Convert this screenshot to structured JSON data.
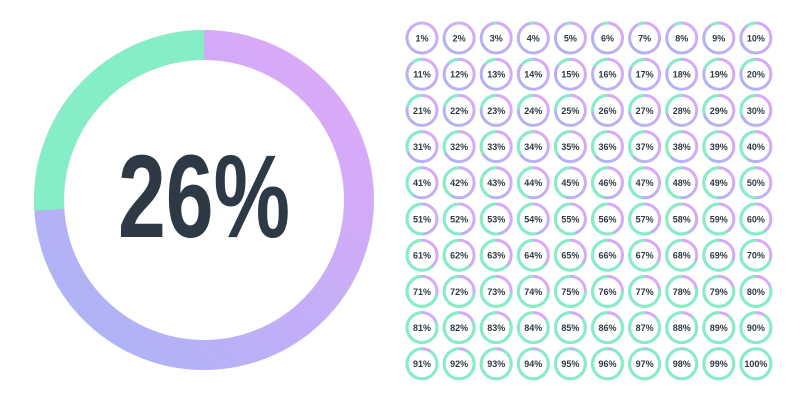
{
  "main": {
    "value": 26,
    "label": "26%"
  },
  "rings": [
    {
      "value": 1,
      "label": "1%"
    },
    {
      "value": 2,
      "label": "2%"
    },
    {
      "value": 3,
      "label": "3%"
    },
    {
      "value": 4,
      "label": "4%"
    },
    {
      "value": 5,
      "label": "5%"
    },
    {
      "value": 6,
      "label": "6%"
    },
    {
      "value": 7,
      "label": "7%"
    },
    {
      "value": 8,
      "label": "8%"
    },
    {
      "value": 9,
      "label": "9%"
    },
    {
      "value": 10,
      "label": "10%"
    },
    {
      "value": 11,
      "label": "11%"
    },
    {
      "value": 12,
      "label": "12%"
    },
    {
      "value": 13,
      "label": "13%"
    },
    {
      "value": 14,
      "label": "14%"
    },
    {
      "value": 15,
      "label": "15%"
    },
    {
      "value": 16,
      "label": "16%"
    },
    {
      "value": 17,
      "label": "17%"
    },
    {
      "value": 18,
      "label": "18%"
    },
    {
      "value": 19,
      "label": "19%"
    },
    {
      "value": 20,
      "label": "20%"
    },
    {
      "value": 21,
      "label": "21%"
    },
    {
      "value": 22,
      "label": "22%"
    },
    {
      "value": 23,
      "label": "23%"
    },
    {
      "value": 24,
      "label": "24%"
    },
    {
      "value": 25,
      "label": "25%"
    },
    {
      "value": 26,
      "label": "26%"
    },
    {
      "value": 27,
      "label": "27%"
    },
    {
      "value": 28,
      "label": "28%"
    },
    {
      "value": 29,
      "label": "29%"
    },
    {
      "value": 30,
      "label": "30%"
    },
    {
      "value": 31,
      "label": "31%"
    },
    {
      "value": 32,
      "label": "32%"
    },
    {
      "value": 33,
      "label": "33%"
    },
    {
      "value": 34,
      "label": "34%"
    },
    {
      "value": 35,
      "label": "35%"
    },
    {
      "value": 36,
      "label": "36%"
    },
    {
      "value": 37,
      "label": "37%"
    },
    {
      "value": 38,
      "label": "38%"
    },
    {
      "value": 39,
      "label": "39%"
    },
    {
      "value": 40,
      "label": "40%"
    },
    {
      "value": 41,
      "label": "41%"
    },
    {
      "value": 42,
      "label": "42%"
    },
    {
      "value": 43,
      "label": "43%"
    },
    {
      "value": 44,
      "label": "44%"
    },
    {
      "value": 45,
      "label": "45%"
    },
    {
      "value": 46,
      "label": "46%"
    },
    {
      "value": 47,
      "label": "47%"
    },
    {
      "value": 48,
      "label": "48%"
    },
    {
      "value": 49,
      "label": "49%"
    },
    {
      "value": 50,
      "label": "50%"
    },
    {
      "value": 51,
      "label": "51%"
    },
    {
      "value": 52,
      "label": "52%"
    },
    {
      "value": 53,
      "label": "53%"
    },
    {
      "value": 54,
      "label": "54%"
    },
    {
      "value": 55,
      "label": "55%"
    },
    {
      "value": 56,
      "label": "56%"
    },
    {
      "value": 57,
      "label": "57%"
    },
    {
      "value": 58,
      "label": "58%"
    },
    {
      "value": 59,
      "label": "59%"
    },
    {
      "value": 60,
      "label": "60%"
    },
    {
      "value": 61,
      "label": "61%"
    },
    {
      "value": 62,
      "label": "62%"
    },
    {
      "value": 63,
      "label": "63%"
    },
    {
      "value": 64,
      "label": "64%"
    },
    {
      "value": 65,
      "label": "65%"
    },
    {
      "value": 66,
      "label": "66%"
    },
    {
      "value": 67,
      "label": "67%"
    },
    {
      "value": 68,
      "label": "68%"
    },
    {
      "value": 69,
      "label": "69%"
    },
    {
      "value": 70,
      "label": "70%"
    },
    {
      "value": 71,
      "label": "71%"
    },
    {
      "value": 72,
      "label": "72%"
    },
    {
      "value": 73,
      "label": "73%"
    },
    {
      "value": 74,
      "label": "74%"
    },
    {
      "value": 75,
      "label": "75%"
    },
    {
      "value": 76,
      "label": "76%"
    },
    {
      "value": 77,
      "label": "77%"
    },
    {
      "value": 78,
      "label": "78%"
    },
    {
      "value": 79,
      "label": "79%"
    },
    {
      "value": 80,
      "label": "80%"
    },
    {
      "value": 81,
      "label": "81%"
    },
    {
      "value": 82,
      "label": "82%"
    },
    {
      "value": 83,
      "label": "83%"
    },
    {
      "value": 84,
      "label": "84%"
    },
    {
      "value": 85,
      "label": "85%"
    },
    {
      "value": 86,
      "label": "86%"
    },
    {
      "value": 87,
      "label": "87%"
    },
    {
      "value": 88,
      "label": "88%"
    },
    {
      "value": 89,
      "label": "89%"
    },
    {
      "value": 90,
      "label": "90%"
    },
    {
      "value": 91,
      "label": "91%"
    },
    {
      "value": 92,
      "label": "92%"
    },
    {
      "value": 93,
      "label": "93%"
    },
    {
      "value": 94,
      "label": "94%"
    },
    {
      "value": 95,
      "label": "95%"
    },
    {
      "value": 96,
      "label": "96%"
    },
    {
      "value": 97,
      "label": "97%"
    },
    {
      "value": 98,
      "label": "98%"
    },
    {
      "value": 99,
      "label": "99%"
    },
    {
      "value": 100,
      "label": "100%"
    }
  ]
}
